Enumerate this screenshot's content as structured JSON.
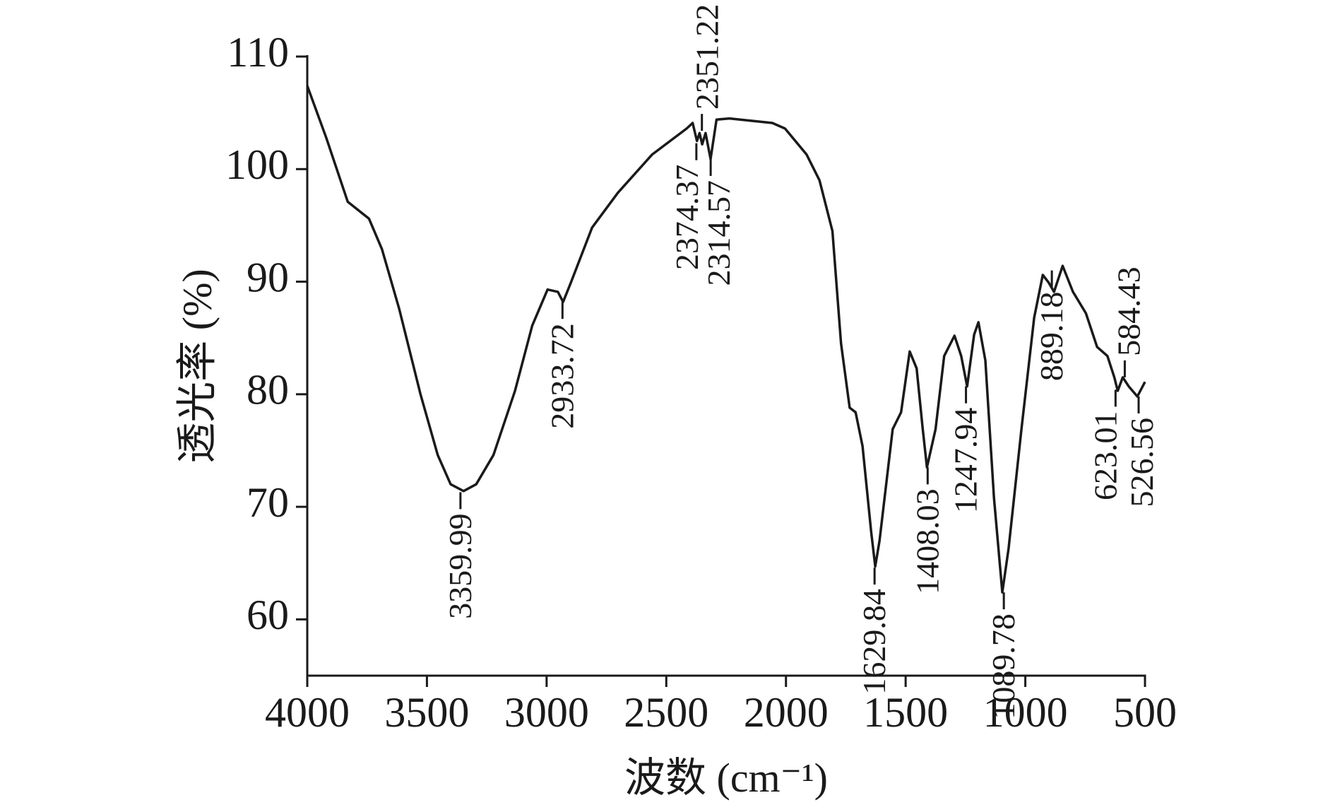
{
  "chart_data": {
    "type": "line",
    "x_label": "波数 (cm⁻¹)",
    "y_label": "透光率 (%)",
    "xlim": [
      4000,
      500
    ],
    "ylim": [
      55,
      110
    ],
    "xticks": [
      4000,
      3500,
      3000,
      2500,
      2000,
      1500,
      1000,
      500
    ],
    "yticks": [
      60,
      70,
      80,
      90,
      100,
      110
    ],
    "grid": false,
    "series": [
      {
        "color": "#1a1a1a",
        "x": [
          4000,
          3921,
          3831,
          3742,
          3688,
          3616,
          3527,
          3455,
          3401,
          3347,
          3294,
          3222,
          3132,
          3060,
          2996,
          2953,
          2931,
          2899,
          2810,
          2702,
          2559,
          2415,
          2390,
          2372,
          2361,
          2350,
          2336,
          2315,
          2290,
          2236,
          2057,
          2004,
          1914,
          1860,
          1806,
          1770,
          1734,
          1709,
          1680,
          1644,
          1627,
          1609,
          1554,
          1519,
          1483,
          1454,
          1429,
          1411,
          1375,
          1339,
          1296,
          1268,
          1243,
          1214,
          1196,
          1167,
          1131,
          1096,
          1070,
          1016,
          963,
          927,
          902,
          880,
          844,
          801,
          747,
          700,
          657,
          628,
          614,
          593,
          568,
          532,
          500
        ],
        "values": [
          107.4,
          102.8,
          97.1,
          95.6,
          92.9,
          87.6,
          80.0,
          74.6,
          72.0,
          71.4,
          72.0,
          74.6,
          80.3,
          86.1,
          89.3,
          89.1,
          88.2,
          89.9,
          94.8,
          97.9,
          101.3,
          103.6,
          104.1,
          102.5,
          103.2,
          102.2,
          103.2,
          100.9,
          104.4,
          104.5,
          104.1,
          103.6,
          101.3,
          99.0,
          94.5,
          84.5,
          78.8,
          78.4,
          75.4,
          67.8,
          64.7,
          67.0,
          76.9,
          78.4,
          83.8,
          82.3,
          77.0,
          73.5,
          76.9,
          83.4,
          85.2,
          83.4,
          80.7,
          85.3,
          86.4,
          83.0,
          70.8,
          62.4,
          66.3,
          76.9,
          86.8,
          90.6,
          89.9,
          89.1,
          91.4,
          89.1,
          87.2,
          84.2,
          83.4,
          81.5,
          80.3,
          81.5,
          80.7,
          79.8,
          81.1
        ]
      }
    ],
    "peaks": [
      {
        "x": 3359.99,
        "y": 71.3
      },
      {
        "x": 2933.72,
        "y": 88.2
      },
      {
        "x": 2374.37,
        "y": 102.3
      },
      {
        "x": 2351.22,
        "y": 103.4
      },
      {
        "x": 2314.57,
        "y": 100.9
      },
      {
        "x": 1629.84,
        "y": 64.6
      },
      {
        "x": 1408.03,
        "y": 73.5
      },
      {
        "x": 1247.94,
        "y": 80.7
      },
      {
        "x": 1089.78,
        "y": 62.4
      },
      {
        "x": 889.18,
        "y": 91.0
      },
      {
        "x": 623.01,
        "y": 80.4
      },
      {
        "x": 584.43,
        "y": 81.5
      },
      {
        "x": 526.56,
        "y": 79.8
      }
    ]
  }
}
